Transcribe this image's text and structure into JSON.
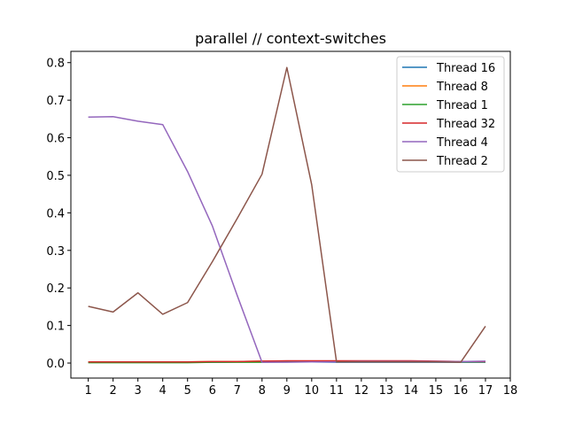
{
  "chart_data": {
    "type": "line",
    "title": "parallel // context-switches",
    "xlabel": "",
    "ylabel": "",
    "xlim": [
      0.3,
      18
    ],
    "ylim": [
      -0.04,
      0.83
    ],
    "x_ticks": [
      "1",
      "2",
      "3",
      "4",
      "5",
      "6",
      "7",
      "8",
      "9",
      "10",
      "11",
      "12",
      "13",
      "14",
      "15",
      "16",
      "17",
      "18"
    ],
    "y_ticks": [
      "0.0",
      "0.1",
      "0.2",
      "0.3",
      "0.4",
      "0.5",
      "0.6",
      "0.7",
      "0.8"
    ],
    "grid": false,
    "legend_position": "top-right",
    "x": [
      1,
      2,
      3,
      4,
      5,
      6,
      7,
      8,
      9,
      10,
      11,
      12,
      13,
      14,
      15,
      16,
      17
    ],
    "series": [
      {
        "name": "Thread 16",
        "color": "#1f77b4",
        "values": [
          0.002,
          0.002,
          0.002,
          0.002,
          0.002,
          0.002,
          0.003,
          0.003,
          0.003,
          0.003,
          0.002,
          0.002,
          0.002,
          0.002,
          0.002,
          0.002,
          0.002
        ]
      },
      {
        "name": "Thread 8",
        "color": "#ff7f0e",
        "values": [
          0.003,
          0.003,
          0.003,
          0.003,
          0.003,
          0.004,
          0.004,
          0.005,
          0.005,
          0.005,
          0.005,
          0.005,
          0.005,
          0.005,
          0.004,
          0.004,
          0.004
        ]
      },
      {
        "name": "Thread 1",
        "color": "#2ca02c",
        "values": [
          0.001,
          0.001,
          0.001,
          0.001,
          0.001,
          0.002,
          0.002,
          0.002,
          0.003,
          0.003,
          0.003,
          0.003,
          0.003,
          0.003,
          0.003,
          0.003,
          0.003
        ]
      },
      {
        "name": "Thread 32",
        "color": "#d62728",
        "values": [
          0.003,
          0.003,
          0.003,
          0.003,
          0.003,
          0.004,
          0.004,
          0.005,
          0.006,
          0.006,
          0.006,
          0.006,
          0.006,
          0.006,
          0.005,
          0.004,
          0.004
        ]
      },
      {
        "name": "Thread 4",
        "color": "#9467bd",
        "values": [
          0.655,
          0.656,
          0.644,
          0.635,
          0.51,
          0.365,
          0.18,
          0.002,
          0.002,
          0.003,
          0.003,
          0.004,
          0.004,
          0.004,
          0.004,
          0.004,
          0.005
        ]
      },
      {
        "name": "Thread 2",
        "color": "#8c564b",
        "values": [
          0.151,
          0.136,
          0.187,
          0.13,
          0.161,
          0.27,
          0.385,
          0.503,
          0.787,
          0.475,
          0.003,
          0.003,
          0.003,
          0.003,
          0.003,
          0.002,
          0.098
        ]
      }
    ]
  }
}
